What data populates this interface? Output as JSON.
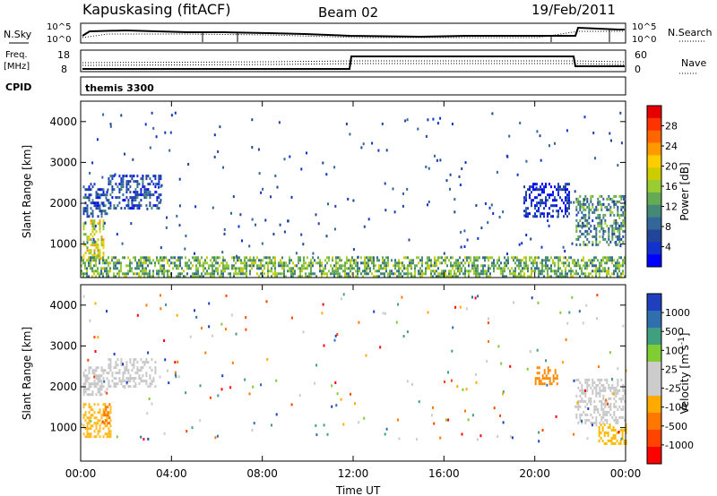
{
  "header": {
    "station": "Kapuskasing (fitACF)",
    "beam": "Beam 02",
    "date": "19/Feb/2011"
  },
  "top_panels": {
    "nsky_label": "N.Sky",
    "nsearch_label": "N.Search",
    "noise_ticks": [
      "10^5",
      "10^0"
    ],
    "freq_label_1": "Freq.",
    "freq_label_2": "[MHz]",
    "freq_ticks": [
      "18",
      "8"
    ],
    "nave_label": "Nave",
    "nave_ticks": [
      "60",
      "0"
    ],
    "cpid_label": "CPID",
    "cpid_value": "themis 3300"
  },
  "chart_data": [
    {
      "type": "heatmap",
      "name_of_parameter": "Power",
      "ylabel": "Slant Range [km]",
      "yticks": [
        1000,
        2000,
        3000,
        4000
      ],
      "ylim": [
        180,
        4500
      ],
      "xticks": [
        "00:00",
        "04:00",
        "08:00",
        "12:00",
        "16:00",
        "20:00",
        "00:00"
      ],
      "xlim_hours": [
        0,
        24
      ],
      "colorbar_label": "Power [dB]",
      "colorbar_ticks": [
        "28",
        "24",
        "20",
        "16",
        "12",
        "8",
        "4"
      ],
      "colorbar_colors": [
        "#e60000",
        "#ff3300",
        "#ff6600",
        "#ff9900",
        "#ffcc00",
        "#cccc00",
        "#99cc33",
        "#66aa55",
        "#448877",
        "#336699",
        "#224499",
        "#1133cc",
        "#0000ff"
      ],
      "regions": [
        {
          "t": [
            0.1,
            1.2
          ],
          "r": [
            1700,
            2500
          ],
          "level": 2
        },
        {
          "t": [
            0.1,
            1.0
          ],
          "r": [
            650,
            1600
          ],
          "level": 7
        },
        {
          "t": [
            1.2,
            3.5
          ],
          "r": [
            1900,
            2700
          ],
          "level": 2
        },
        {
          "t": [
            0,
            24
          ],
          "r": [
            180,
            700
          ],
          "level": 5
        },
        {
          "t": [
            19.5,
            21.5
          ],
          "r": [
            1700,
            2500
          ],
          "level": 1
        },
        {
          "t": [
            21.8,
            24
          ],
          "r": [
            1000,
            2200
          ],
          "level": 4
        }
      ]
    },
    {
      "type": "heatmap",
      "name_of_parameter": "Velocity",
      "ylabel": "Slant Range [km]",
      "yticks": [
        1000,
        2000,
        3000,
        4000
      ],
      "ylim": [
        180,
        4500
      ],
      "xticks": [
        "00:00",
        "04:00",
        "08:00",
        "12:00",
        "16:00",
        "20:00",
        "00:00"
      ],
      "xlim_hours": [
        0,
        24
      ],
      "xlabel": "Time UT",
      "colorbar_label": "Velocity [m s^-1]",
      "colorbar_label_main": "Velocity  [m s",
      "colorbar_label_sup": "-1",
      "colorbar_label_end": "]",
      "colorbar_ticks": [
        "1000",
        "500",
        "100",
        "25",
        "-25",
        "-100",
        "-500",
        "-1000"
      ],
      "colorbar_colors": [
        "#1f3fbf",
        "#2f6fb0",
        "#3f9f7f",
        "#7fcc33",
        "#cccccc",
        "#cccccc",
        "#ffaa00",
        "#ff7700",
        "#ff4400",
        "#ff0000"
      ],
      "regions": [
        {
          "t": [
            0.1,
            1.2
          ],
          "r": [
            1800,
            2500
          ],
          "color": "#c8c8c8"
        },
        {
          "t": [
            0.1,
            1.3
          ],
          "r": [
            800,
            1600
          ],
          "color": "#ffbb22"
        },
        {
          "t": [
            1.0,
            1.3
          ],
          "r": [
            1100,
            1600
          ],
          "color": "#ff7700"
        },
        {
          "t": [
            1.2,
            3.3
          ],
          "r": [
            2000,
            2700
          ],
          "color": "#c8c8c8"
        },
        {
          "t": [
            20.0,
            21.0
          ],
          "r": [
            2100,
            2500
          ],
          "color": "#ff8800"
        },
        {
          "t": [
            21.8,
            24
          ],
          "r": [
            1100,
            2200
          ],
          "color": "#c8c8c8"
        },
        {
          "t": [
            22.8,
            24
          ],
          "r": [
            600,
            1100
          ],
          "color": "#ffbb00"
        }
      ]
    }
  ]
}
